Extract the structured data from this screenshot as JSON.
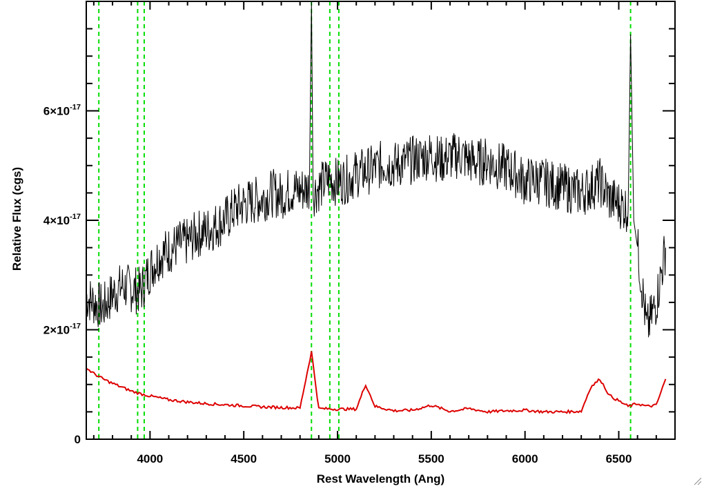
{
  "chart_data": {
    "type": "line",
    "xlabel": "Rest Wavelength (Ang)",
    "ylabel": "Relative Flux (cgs)",
    "xlim": [
      3660,
      6800
    ],
    "ylim": [
      0,
      8e-17
    ],
    "x_ticks": [
      {
        "value": 4000,
        "label": "4000"
      },
      {
        "value": 4500,
        "label": "4500"
      },
      {
        "value": 5000,
        "label": "5000"
      },
      {
        "value": 5500,
        "label": "5500"
      },
      {
        "value": 6000,
        "label": "6000"
      },
      {
        "value": 6500,
        "label": "6500"
      }
    ],
    "y_ticks": [
      {
        "value": 0,
        "label": "0",
        "mantissa": "",
        "exponent": ""
      },
      {
        "value": 2e-17,
        "label": "",
        "mantissa": "2×10",
        "exponent": "-17"
      },
      {
        "value": 4e-17,
        "label": "",
        "mantissa": "4×10",
        "exponent": "-17"
      },
      {
        "value": 6e-17,
        "label": "",
        "mantissa": "6×10",
        "exponent": "-17"
      }
    ],
    "grid": false,
    "colors": {
      "spectrum": "#000000",
      "error": "#dd0000",
      "lines": "#00dd00"
    },
    "reference_lines": [
      3727,
      3934,
      3969,
      4861,
      4959,
      5007,
      6563
    ],
    "series": [
      {
        "color": "#000000",
        "x": [
          3660,
          3700,
          3750,
          3800,
          3850,
          3900,
          3950,
          4000,
          4050,
          4100,
          4150,
          4200,
          4250,
          4300,
          4350,
          4400,
          4450,
          4500,
          4550,
          4600,
          4650,
          4700,
          4750,
          4800,
          4850,
          4861,
          4870,
          4900,
          4950,
          5000,
          5050,
          5100,
          5150,
          5200,
          5250,
          5300,
          5350,
          5400,
          5450,
          5500,
          5550,
          5600,
          5650,
          5700,
          5750,
          5800,
          5850,
          5900,
          5950,
          6000,
          6050,
          6100,
          6150,
          6200,
          6250,
          6300,
          6350,
          6400,
          6450,
          6500,
          6550,
          6563,
          6580,
          6600,
          6650,
          6700,
          6750
        ],
        "y": [
          2.6e-17,
          2.5e-17,
          2.4e-17,
          2.65e-17,
          2.8e-17,
          2.75e-17,
          2.7e-17,
          3.1e-17,
          3.35e-17,
          3.45e-17,
          3.55e-17,
          3.6e-17,
          3.75e-17,
          3.8e-17,
          3.9e-17,
          4e-17,
          4.2e-17,
          4.3e-17,
          4.35e-17,
          4.4e-17,
          4.5e-17,
          4.45e-17,
          4.55e-17,
          4.55e-17,
          4.6e-17,
          8e-17,
          4.5e-17,
          4.6e-17,
          4.75e-17,
          4.7e-17,
          4.75e-17,
          4.85e-17,
          4.9e-17,
          4.95e-17,
          5.05e-17,
          5e-17,
          5.05e-17,
          5.1e-17,
          5.15e-17,
          5.2e-17,
          5.1e-17,
          5.15e-17,
          5.2e-17,
          5.1e-17,
          5.05e-17,
          5.1e-17,
          5e-17,
          4.95e-17,
          4.85e-17,
          4.7e-17,
          4.75e-17,
          4.7e-17,
          4.65e-17,
          4.6e-17,
          4.55e-17,
          4.5e-17,
          4.6e-17,
          4.7e-17,
          4.4e-17,
          4.3e-17,
          4.2e-17,
          7.4e-17,
          4e-17,
          3.5e-17,
          2e-17,
          2.5e-17,
          3.5e-17
        ]
      },
      {
        "color": "#dd0000",
        "x": [
          3660,
          3700,
          3750,
          3800,
          3850,
          3900,
          3950,
          4000,
          4100,
          4200,
          4300,
          4400,
          4500,
          4600,
          4700,
          4800,
          4861,
          4900,
          5000,
          5100,
          5150,
          5200,
          5300,
          5400,
          5500,
          5600,
          5700,
          5800,
          5900,
          6000,
          6100,
          6200,
          6300,
          6350,
          6400,
          6450,
          6500,
          6550,
          6600,
          6650,
          6700,
          6750
        ],
        "y": [
          1.3e-17,
          1.2e-17,
          1.1e-17,
          1.02e-17,
          9.5e-18,
          8.8e-18,
          8.3e-18,
          7.9e-18,
          7.2e-18,
          6.8e-18,
          6.5e-18,
          6.3e-18,
          6.1e-18,
          5.9e-18,
          5.8e-18,
          5.7e-18,
          1.6e-17,
          5.6e-18,
          5.5e-18,
          5.5e-18,
          1e-17,
          6e-18,
          5.2e-18,
          5.3e-18,
          6.2e-18,
          5.1e-18,
          5.6e-18,
          5e-18,
          5.2e-18,
          5.3e-18,
          5e-18,
          5e-18,
          5.1e-18,
          9.5e-18,
          1.1e-17,
          8e-18,
          7e-18,
          6e-18,
          6.5e-18,
          6e-18,
          6.2e-18,
          1.1e-17
        ]
      }
    ]
  }
}
